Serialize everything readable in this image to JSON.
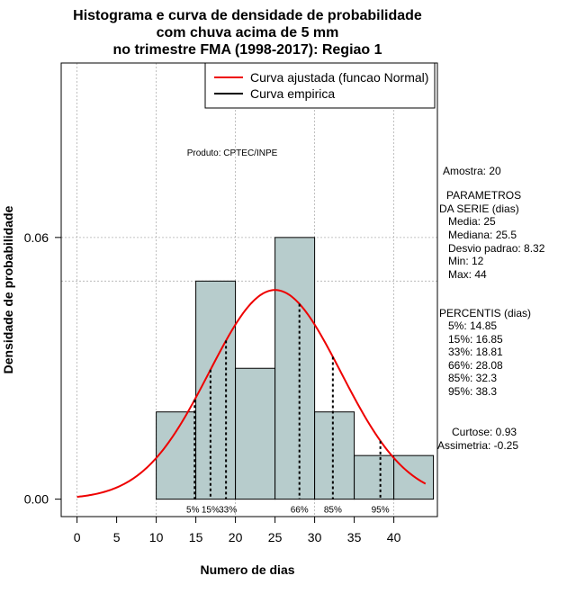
{
  "chart_data": {
    "type": "histogram",
    "title_lines": [
      "Histograma e curva de densidade de probabilidade",
      "com chuva acima de 5 mm",
      "no trimestre FMA (1998-2017): Regiao 1"
    ],
    "xlabel": "Numero de dias",
    "ylabel": "Densidade de probabilidade",
    "xlim": [
      -2,
      45.5
    ],
    "ylim": [
      -0.004,
      0.1
    ],
    "x_ticks": [
      0,
      5,
      10,
      15,
      20,
      25,
      30,
      35,
      40
    ],
    "y_ticks": [
      0.0,
      0.06
    ],
    "y_tick_labels": [
      "0.00",
      "0.06"
    ],
    "bins": [
      {
        "x0": 10,
        "x1": 15,
        "density": 0.02
      },
      {
        "x0": 15,
        "x1": 20,
        "density": 0.05
      },
      {
        "x0": 20,
        "x1": 25,
        "density": 0.03
      },
      {
        "x0": 25,
        "x1": 30,
        "density": 0.06
      },
      {
        "x0": 30,
        "x1": 35,
        "density": 0.02
      },
      {
        "x0": 35,
        "x1": 40,
        "density": 0.01
      },
      {
        "x0": 40,
        "x1": 45,
        "density": 0.01
      }
    ],
    "normal_fit": {
      "mean": 25,
      "sd": 8.32,
      "x_range": [
        0,
        44
      ]
    },
    "percentile_lines": [
      {
        "label": "5%",
        "x": 14.85
      },
      {
        "label": "15%",
        "x": 16.85
      },
      {
        "label": "33%",
        "x": 18.81
      },
      {
        "label": "66%",
        "x": 28.08
      },
      {
        "label": "85%",
        "x": 32.3
      },
      {
        "label": "95%",
        "x": 38.3
      }
    ],
    "h_grid": [
      0.06,
      0.05,
      0.1
    ],
    "legend": [
      {
        "label": "Curva ajustada (funcao Normal)",
        "color": "#ee0000"
      },
      {
        "label": "Curva empirica",
        "color": "#000000"
      }
    ],
    "legend_position": "top-right",
    "colors": {
      "bar_fill": "#b7cccc",
      "curve": "#ee0000",
      "grid": "#b0b0b0"
    }
  },
  "annotations": {
    "product": "Produto: CPTEC/INPE",
    "sample": "Amostra: 20",
    "params_header": [
      "PARAMETROS",
      "DA SERIE (dias)"
    ],
    "params": [
      "Media: 25",
      "Mediana: 25.5",
      "Desvio padrao: 8.32",
      "Min: 12",
      "Max: 44"
    ],
    "percentis_header": "PERCENTIS (dias)",
    "percentis": [
      "5%: 14.85",
      "15%: 16.85",
      "33%: 18.81",
      "66%: 28.08",
      "85%: 32.3",
      "95%: 38.3"
    ],
    "curtose": "Curtose: 0.93",
    "assimetria": "Assimetria: -0.25"
  }
}
